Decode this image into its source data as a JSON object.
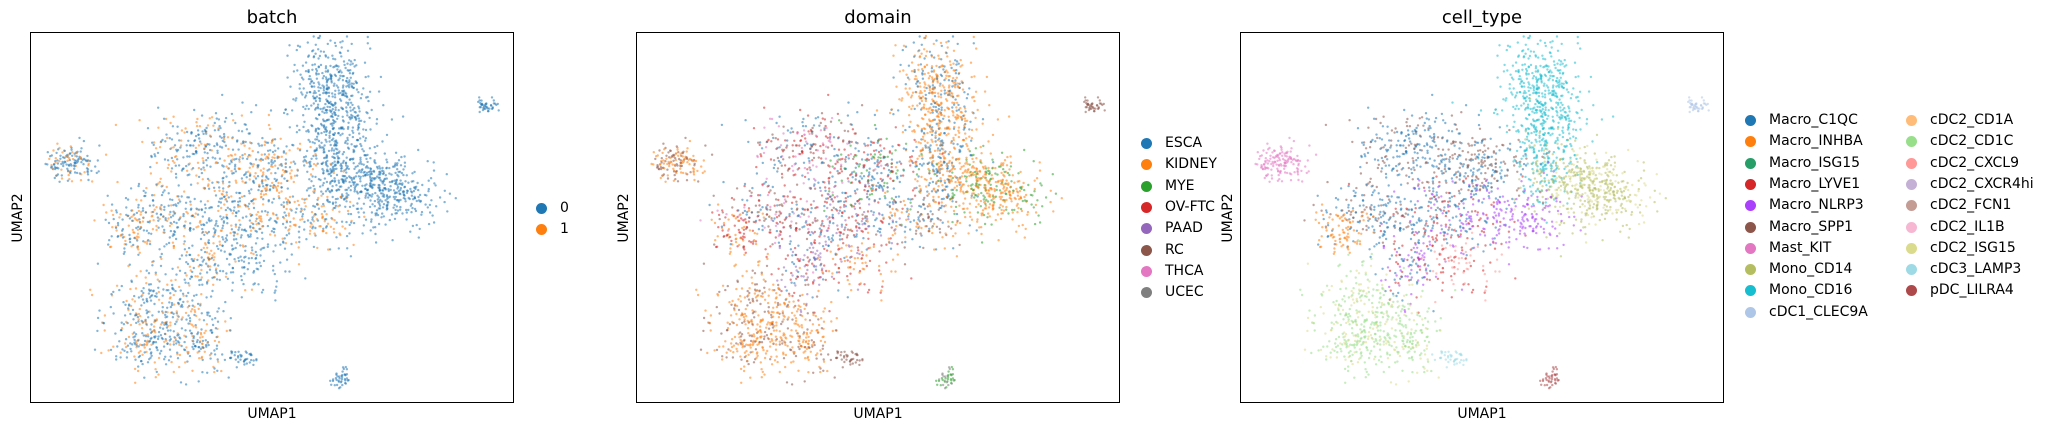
{
  "chart_data": [
    {
      "type": "scatter",
      "title": "batch",
      "xlabel": "UMAP1",
      "ylabel": "UMAP2",
      "legend_placement": "right",
      "series": [
        {
          "name": "0",
          "color": "#1f77b4"
        },
        {
          "name": "1",
          "color": "#ff7f0e"
        }
      ]
    },
    {
      "type": "scatter",
      "title": "domain",
      "xlabel": "UMAP1",
      "ylabel": "UMAP2",
      "legend_placement": "right",
      "series": [
        {
          "name": "ESCA",
          "color": "#1f77b4"
        },
        {
          "name": "KIDNEY",
          "color": "#ff7f0e"
        },
        {
          "name": "MYE",
          "color": "#2ca02c"
        },
        {
          "name": "OV-FTC",
          "color": "#d62728"
        },
        {
          "name": "PAAD",
          "color": "#9467bd"
        },
        {
          "name": "RC",
          "color": "#8c564b"
        },
        {
          "name": "THCA",
          "color": "#e377c2"
        },
        {
          "name": "UCEC",
          "color": "#7f7f7f"
        }
      ]
    },
    {
      "type": "scatter",
      "title": "cell_type",
      "xlabel": "UMAP1",
      "ylabel": "UMAP2",
      "legend_placement": "right",
      "series": [
        {
          "name": "Macro_C1QC",
          "color": "#1f77b4"
        },
        {
          "name": "Macro_INHBA",
          "color": "#ff7f0e"
        },
        {
          "name": "Macro_ISG15",
          "color": "#279e68"
        },
        {
          "name": "Macro_LYVE1",
          "color": "#d62728"
        },
        {
          "name": "Macro_NLRP3",
          "color": "#aa40fc"
        },
        {
          "name": "Macro_SPP1",
          "color": "#8c564b"
        },
        {
          "name": "Mast_KIT",
          "color": "#e377c2"
        },
        {
          "name": "Mono_CD14",
          "color": "#b5bd61"
        },
        {
          "name": "Mono_CD16",
          "color": "#17becf"
        },
        {
          "name": "cDC1_CLEC9A",
          "color": "#aec7e8"
        },
        {
          "name": "cDC2_CD1A",
          "color": "#ffbb78"
        },
        {
          "name": "cDC2_CD1C",
          "color": "#98df8a"
        },
        {
          "name": "cDC2_CXCL9",
          "color": "#ff9896"
        },
        {
          "name": "cDC2_CXCR4hi",
          "color": "#c5b0d5"
        },
        {
          "name": "cDC2_FCN1",
          "color": "#c49c94"
        },
        {
          "name": "cDC2_IL1B",
          "color": "#f7b6d2"
        },
        {
          "name": "cDC2_ISG15",
          "color": "#dbdb8d"
        },
        {
          "name": "cDC3_LAMP3",
          "color": "#9edae5"
        },
        {
          "name": "pDC_LILRA4",
          "color": "#ad494a"
        }
      ]
    }
  ]
}
